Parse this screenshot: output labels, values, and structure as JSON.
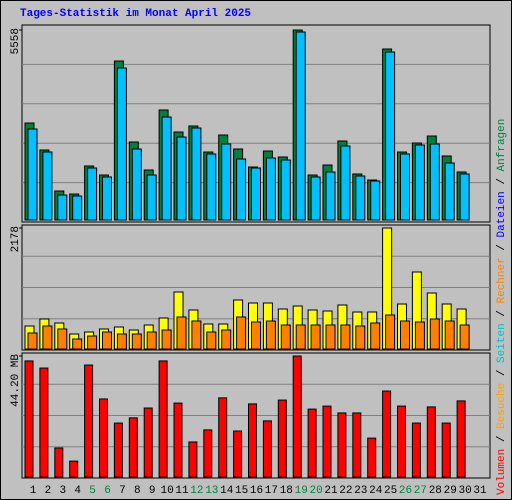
{
  "chart_data": [
    {
      "type": "bar",
      "title": "Tages-Statistik im Monat April 2025",
      "ylim": [
        0,
        5558
      ],
      "yticks": [
        5558
      ],
      "series": [
        {
          "name": "Anfragen",
          "color": "#008040",
          "values": [
            2837,
            2048,
            848,
            760,
            1580,
            1316,
            4651,
            2282,
            1463,
            3218,
            2574,
            2750,
            1989,
            2486,
            2077,
            1550,
            2018,
            1843,
            5558,
            1316,
            1609,
            2311,
            1346,
            1170,
            5002,
            1989,
            2252,
            2457,
            1872,
            1404,
            null
          ]
        },
        {
          "name": "Dateien",
          "color": "#00C0FF",
          "values": [
            2662,
            1989,
            731,
            702,
            1521,
            1258,
            4446,
            2077,
            1316,
            3013,
            2428,
            2691,
            1931,
            2223,
            1784,
            1521,
            1814,
            1755,
            5499,
            1258,
            1404,
            2165,
            1287,
            1141,
            4914,
            1931,
            2194,
            2223,
            1667,
            1346,
            null
          ]
        }
      ]
    },
    {
      "type": "bar",
      "ylim": [
        0,
        2178
      ],
      "yticks": [
        2178
      ],
      "series": [
        {
          "name": "Seiten",
          "color": "#FFFF00",
          "values": [
            414,
            540,
            468,
            270,
            306,
            360,
            396,
            342,
            432,
            558,
            1026,
            702,
            450,
            450,
            882,
            828,
            828,
            720,
            774,
            702,
            684,
            792,
            666,
            666,
            2178,
            810,
            1386,
            1008,
            810,
            720,
            null
          ]
        },
        {
          "name": "Besuche",
          "color": "#FF8000",
          "values": [
            288,
            414,
            360,
            180,
            234,
            306,
            270,
            270,
            306,
            342,
            576,
            504,
            306,
            342,
            576,
            486,
            504,
            432,
            432,
            432,
            432,
            432,
            414,
            468,
            612,
            504,
            486,
            540,
            504,
            432,
            null
          ]
        }
      ],
      "extra_legend": [
        {
          "name": "Rechner",
          "color": "#FF8000"
        }
      ]
    },
    {
      "type": "bar",
      "ylim": [
        0,
        44.2
      ],
      "yticks": [
        {
          "value": 44.2,
          "label": "44.20 MB"
        }
      ],
      "categories": [
        "1",
        "2",
        "3",
        "4",
        "5",
        "6",
        "7",
        "8",
        "9",
        "10",
        "11",
        "12",
        "13",
        "14",
        "15",
        "16",
        "17",
        "18",
        "19",
        "20",
        "21",
        "22",
        "23",
        "24",
        "25",
        "26",
        "27",
        "28",
        "29",
        "30",
        "31"
      ],
      "category_colors": [
        "#000000",
        "#000000",
        "#000000",
        "#000000",
        "#008040",
        "#008040",
        "#000000",
        "#000000",
        "#000000",
        "#000000",
        "#000000",
        "#008040",
        "#008040",
        "#000000",
        "#000000",
        "#000000",
        "#000000",
        "#000000",
        "#008040",
        "#008040",
        "#000000",
        "#000000",
        "#000000",
        "#000000",
        "#000000",
        "#008040",
        "#008040",
        "#000000",
        "#000000",
        "#000000",
        "#000000"
      ],
      "series": [
        {
          "name": "Volumen",
          "color": "#FF0000",
          "values": [
            42.4,
            39.8,
            10.6,
            5.8,
            40.9,
            28.5,
            19.7,
            21.6,
            25.2,
            42.4,
            27.0,
            12.8,
            17.2,
            28.9,
            16.8,
            26.7,
            20.5,
            28.1,
            44.2,
            24.8,
            25.9,
            23.4,
            23.4,
            14.2,
            31.4,
            25.9,
            19.7,
            25.6,
            19.7,
            27.8,
            null
          ]
        }
      ]
    }
  ],
  "legend_separator": " / "
}
